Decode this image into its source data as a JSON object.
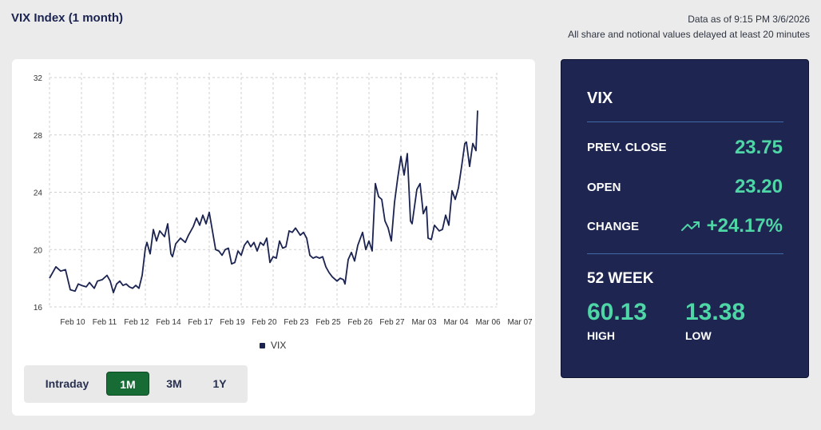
{
  "header": {
    "title": "VIX Index (1 month)",
    "data_as_of": "Data as of 9:15 PM 3/6/2026",
    "delay_note": "All share and notional values delayed at least 20 minutes"
  },
  "colors": {
    "line": "#1b2350",
    "accent_green": "#4fd6a6",
    "active_button": "#176b35",
    "panel_bg": "#1d2550"
  },
  "range_selector": {
    "options": [
      "Intraday",
      "1M",
      "3M",
      "1Y"
    ],
    "selected": "1M"
  },
  "quote_panel": {
    "ticker": "VIX",
    "prev_close_label": "PREV. CLOSE",
    "prev_close": "23.75",
    "open_label": "OPEN",
    "open": "23.20",
    "change_label": "CHANGE",
    "change": "+24.17%",
    "change_icon": "trending-up-icon",
    "week52_label": "52 WEEK",
    "high": "60.13",
    "high_label": "HIGH",
    "low": "13.38",
    "low_label": "LOW"
  },
  "chart_data": {
    "type": "line",
    "title": "",
    "xlabel": "",
    "ylabel": "",
    "ylim": [
      16,
      32
    ],
    "y_ticks": [
      16,
      20,
      24,
      28,
      32
    ],
    "grid": true,
    "legend": [
      {
        "name": "VIX",
        "position": "bottom-center"
      }
    ],
    "categories": [
      "Feb 10",
      "Feb 11",
      "Feb 12",
      "Feb 14",
      "Feb 17",
      "Feb 19",
      "Feb 20",
      "Feb 23",
      "Feb 25",
      "Feb 26",
      "Feb 27",
      "Mar 03",
      "Mar 04",
      "Mar 06",
      "Mar 07"
    ],
    "series": [
      {
        "name": "VIX",
        "values": [
          [
            0,
            18.0
          ],
          [
            0.2,
            18.8
          ],
          [
            0.35,
            18.5
          ],
          [
            0.5,
            18.6
          ],
          [
            0.65,
            17.2
          ],
          [
            0.8,
            17.1
          ],
          [
            0.9,
            17.6
          ],
          [
            1.0,
            17.5
          ],
          [
            1.15,
            17.4
          ],
          [
            1.25,
            17.7
          ],
          [
            1.4,
            17.3
          ],
          [
            1.5,
            17.8
          ],
          [
            1.65,
            17.9
          ],
          [
            1.8,
            18.2
          ],
          [
            1.9,
            17.8
          ],
          [
            2.0,
            17.0
          ],
          [
            2.1,
            17.6
          ],
          [
            2.2,
            17.8
          ],
          [
            2.3,
            17.5
          ],
          [
            2.4,
            17.6
          ],
          [
            2.5,
            17.4
          ],
          [
            2.6,
            17.3
          ],
          [
            2.7,
            17.5
          ],
          [
            2.8,
            17.3
          ],
          [
            2.9,
            18.2
          ],
          [
            3.0,
            20.1
          ],
          [
            3.05,
            20.5
          ],
          [
            3.15,
            19.7
          ],
          [
            3.25,
            21.4
          ],
          [
            3.35,
            20.6
          ],
          [
            3.45,
            21.3
          ],
          [
            3.6,
            20.9
          ],
          [
            3.7,
            21.8
          ],
          [
            3.8,
            19.7
          ],
          [
            3.85,
            19.5
          ],
          [
            3.95,
            20.4
          ],
          [
            4.1,
            20.8
          ],
          [
            4.25,
            20.5
          ],
          [
            4.35,
            21.0
          ],
          [
            4.5,
            21.6
          ],
          [
            4.6,
            22.2
          ],
          [
            4.7,
            21.7
          ],
          [
            4.8,
            22.4
          ],
          [
            4.9,
            21.8
          ],
          [
            5.0,
            22.6
          ],
          [
            5.1,
            21.3
          ],
          [
            5.2,
            20.0
          ],
          [
            5.3,
            19.9
          ],
          [
            5.4,
            19.6
          ],
          [
            5.5,
            20.0
          ],
          [
            5.6,
            20.1
          ],
          [
            5.7,
            19.0
          ],
          [
            5.8,
            19.1
          ],
          [
            5.9,
            19.9
          ],
          [
            6.0,
            19.6
          ],
          [
            6.1,
            20.3
          ],
          [
            6.2,
            20.6
          ],
          [
            6.3,
            20.2
          ],
          [
            6.4,
            20.5
          ],
          [
            6.5,
            19.9
          ],
          [
            6.6,
            20.5
          ],
          [
            6.7,
            20.3
          ],
          [
            6.8,
            20.8
          ],
          [
            6.9,
            19.1
          ],
          [
            7.0,
            19.5
          ],
          [
            7.1,
            19.4
          ],
          [
            7.2,
            20.6
          ],
          [
            7.3,
            20.1
          ],
          [
            7.4,
            20.2
          ],
          [
            7.5,
            21.3
          ],
          [
            7.6,
            21.2
          ],
          [
            7.7,
            21.5
          ],
          [
            7.85,
            21.0
          ],
          [
            7.95,
            21.2
          ],
          [
            8.05,
            20.8
          ],
          [
            8.15,
            19.6
          ],
          [
            8.25,
            19.4
          ],
          [
            8.35,
            19.5
          ],
          [
            8.45,
            19.4
          ],
          [
            8.55,
            19.5
          ],
          [
            8.65,
            18.8
          ],
          [
            8.75,
            18.4
          ],
          [
            8.85,
            18.1
          ],
          [
            9.0,
            17.8
          ],
          [
            9.1,
            18.0
          ],
          [
            9.2,
            17.9
          ],
          [
            9.25,
            17.6
          ],
          [
            9.35,
            19.3
          ],
          [
            9.45,
            19.8
          ],
          [
            9.55,
            19.2
          ],
          [
            9.65,
            20.3
          ],
          [
            9.8,
            21.2
          ],
          [
            9.9,
            20.0
          ],
          [
            10.0,
            20.6
          ],
          [
            10.1,
            19.9
          ],
          [
            10.2,
            24.6
          ],
          [
            10.3,
            23.7
          ],
          [
            10.4,
            23.5
          ],
          [
            10.5,
            22.0
          ],
          [
            10.6,
            21.5
          ],
          [
            10.7,
            20.6
          ],
          [
            10.8,
            23.3
          ],
          [
            10.9,
            25.0
          ],
          [
            11.0,
            26.5
          ],
          [
            11.1,
            25.2
          ],
          [
            11.2,
            26.7
          ],
          [
            11.3,
            22.0
          ],
          [
            11.35,
            21.8
          ],
          [
            11.5,
            24.2
          ],
          [
            11.6,
            24.6
          ],
          [
            11.7,
            22.5
          ],
          [
            11.8,
            23.0
          ],
          [
            11.85,
            20.8
          ],
          [
            11.95,
            20.7
          ],
          [
            12.05,
            21.7
          ],
          [
            12.2,
            21.3
          ],
          [
            12.3,
            21.4
          ],
          [
            12.4,
            22.4
          ],
          [
            12.5,
            21.7
          ],
          [
            12.6,
            24.1
          ],
          [
            12.7,
            23.5
          ],
          [
            12.8,
            24.3
          ],
          [
            12.9,
            25.8
          ],
          [
            13.0,
            27.4
          ],
          [
            13.05,
            27.5
          ],
          [
            13.15,
            25.8
          ],
          [
            13.25,
            27.4
          ],
          [
            13.35,
            26.9
          ],
          [
            13.4,
            29.7
          ]
        ]
      }
    ]
  }
}
